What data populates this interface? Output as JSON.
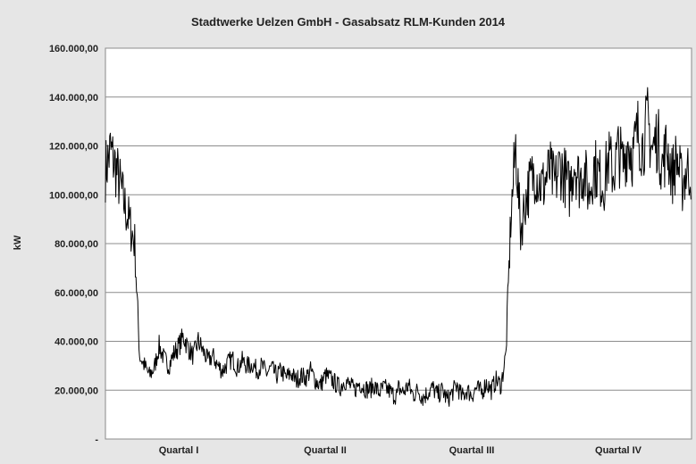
{
  "chart_data": {
    "type": "line",
    "title": "Stadtwerke Uelzen GmbH  - Gasabsatz RLM-Kunden 2014",
    "xlabel": "",
    "ylabel": "kW",
    "ylim": [
      0,
      160000
    ],
    "yticks": [
      {
        "value": 0,
        "label": "-"
      },
      {
        "value": 20000,
        "label": "20.000,00"
      },
      {
        "value": 40000,
        "label": "40.000,00"
      },
      {
        "value": 60000,
        "label": "60.000,00"
      },
      {
        "value": 80000,
        "label": "80.000,00"
      },
      {
        "value": 100000,
        "label": "100.000,00"
      },
      {
        "value": 120000,
        "label": "120.000,00"
      },
      {
        "value": 140000,
        "label": "140.000,00"
      },
      {
        "value": 160000,
        "label": "160.000,00"
      }
    ],
    "categories": [
      "Quartal I",
      "Quartal II",
      "Quartal III",
      "Quartal IV"
    ],
    "grid": true,
    "legend": "none",
    "series_color": "#000000",
    "series": [
      {
        "name": "",
        "points_per_category": [
          [
            110000,
            118000,
            112000,
            104000,
            95000,
            88000,
            80000,
            34000,
            30000,
            26000,
            29000,
            38000,
            33000,
            30000,
            35000,
            38000,
            42000,
            37000,
            34000,
            40000,
            36000,
            32000,
            34000,
            30000,
            28000,
            31000,
            33000,
            29000,
            32000,
            30000
          ],
          [
            31000,
            28000,
            30000,
            27000,
            29000,
            26000,
            28000,
            25000,
            27000,
            24000,
            26000,
            25000,
            28000,
            24000,
            22000,
            26000,
            25000,
            23000,
            21000,
            24000,
            22000,
            20000,
            23000,
            21000,
            20000,
            22000,
            19000,
            21000,
            20000,
            18000
          ],
          [
            21000,
            19000,
            22000,
            18000,
            20000,
            17000,
            19000,
            21000,
            18000,
            20000,
            16000,
            19000,
            22000,
            17000,
            20000,
            18000,
            21000,
            19000,
            23000,
            20000,
            24000,
            22000,
            35000,
            90000,
            120000,
            85000,
            98000,
            105000,
            110000,
            104000
          ],
          [
            106000,
            110000,
            104000,
            112000,
            108000,
            102000,
            114000,
            106000,
            110000,
            100000,
            112000,
            108000,
            104000,
            115000,
            109000,
            118000,
            112000,
            122000,
            116000,
            126000,
            120000,
            130000,
            118000,
            124000,
            112000,
            120000,
            108000,
            115000,
            104000,
            110000
          ]
        ]
      }
    ]
  }
}
